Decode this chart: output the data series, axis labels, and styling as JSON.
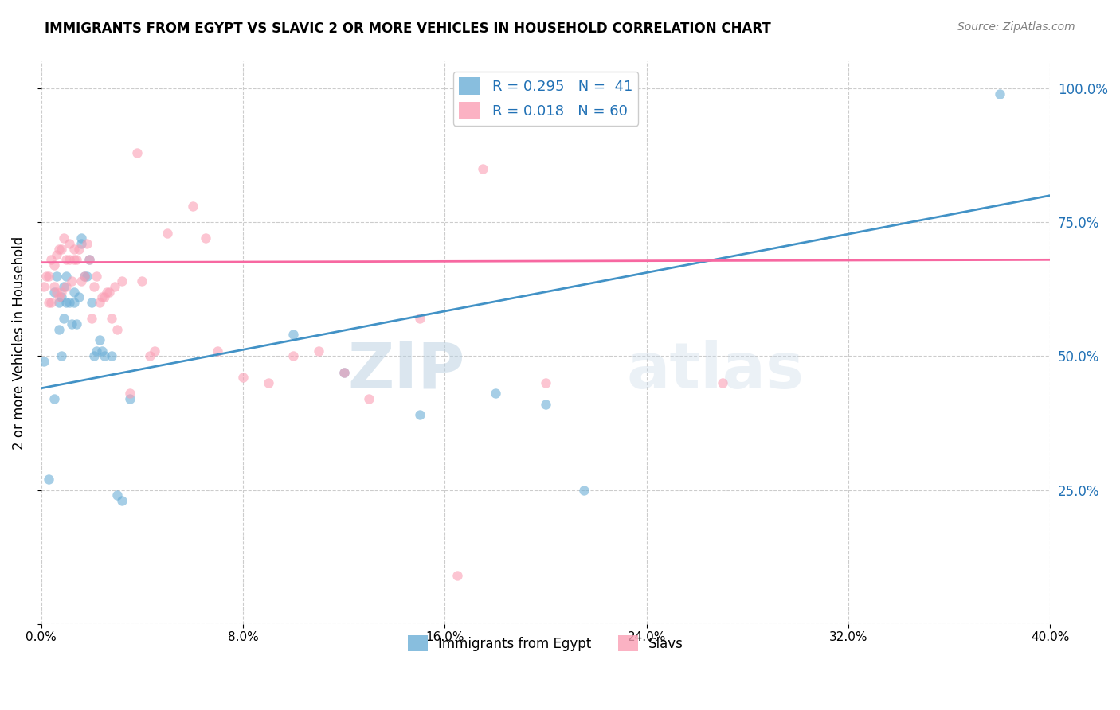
{
  "title": "IMMIGRANTS FROM EGYPT VS SLAVIC 2 OR MORE VEHICLES IN HOUSEHOLD CORRELATION CHART",
  "source": "Source: ZipAtlas.com",
  "ylabel": "2 or more Vehicles in Household",
  "y_tick_labels": [
    "",
    "25.0%",
    "50.0%",
    "75.0%",
    "100.0%"
  ],
  "y_tick_positions": [
    0.0,
    0.25,
    0.5,
    0.75,
    1.0
  ],
  "x_range": [
    0.0,
    0.4
  ],
  "y_range": [
    0.0,
    1.05
  ],
  "legend_r1": "R = 0.295",
  "legend_n1": "N =  41",
  "legend_r2": "R = 0.018",
  "legend_n2": "N = 60",
  "legend_label1": "Immigrants from Egypt",
  "legend_label2": "Slavs",
  "blue_color": "#6baed6",
  "pink_color": "#fa9fb5",
  "line_blue": "#4292c6",
  "line_pink": "#f768a1",
  "text_blue": "#2171b5",
  "watermark_zip": "ZIP",
  "watermark_atlas": "atlas",
  "blue_scatter_x": [
    0.001,
    0.003,
    0.005,
    0.005,
    0.006,
    0.007,
    0.007,
    0.008,
    0.008,
    0.009,
    0.009,
    0.01,
    0.01,
    0.011,
    0.012,
    0.013,
    0.013,
    0.014,
    0.015,
    0.016,
    0.016,
    0.017,
    0.018,
    0.019,
    0.02,
    0.021,
    0.022,
    0.023,
    0.024,
    0.025,
    0.028,
    0.03,
    0.032,
    0.035,
    0.1,
    0.12,
    0.15,
    0.18,
    0.2,
    0.215,
    0.38
  ],
  "blue_scatter_y": [
    0.49,
    0.27,
    0.42,
    0.62,
    0.65,
    0.55,
    0.6,
    0.5,
    0.61,
    0.57,
    0.63,
    0.6,
    0.65,
    0.6,
    0.56,
    0.6,
    0.62,
    0.56,
    0.61,
    0.71,
    0.72,
    0.65,
    0.65,
    0.68,
    0.6,
    0.5,
    0.51,
    0.53,
    0.51,
    0.5,
    0.5,
    0.24,
    0.23,
    0.42,
    0.54,
    0.47,
    0.39,
    0.43,
    0.41,
    0.25,
    0.99
  ],
  "pink_scatter_x": [
    0.001,
    0.002,
    0.003,
    0.003,
    0.004,
    0.004,
    0.005,
    0.005,
    0.006,
    0.006,
    0.007,
    0.007,
    0.008,
    0.008,
    0.009,
    0.01,
    0.01,
    0.011,
    0.011,
    0.012,
    0.013,
    0.013,
    0.014,
    0.015,
    0.016,
    0.017,
    0.018,
    0.019,
    0.02,
    0.021,
    0.022,
    0.023,
    0.024,
    0.025,
    0.026,
    0.027,
    0.028,
    0.029,
    0.03,
    0.032,
    0.035,
    0.038,
    0.04,
    0.043,
    0.045,
    0.05,
    0.06,
    0.065,
    0.07,
    0.08,
    0.09,
    0.1,
    0.11,
    0.12,
    0.13,
    0.15,
    0.165,
    0.175,
    0.2,
    0.27
  ],
  "pink_scatter_y": [
    0.63,
    0.65,
    0.6,
    0.65,
    0.6,
    0.68,
    0.63,
    0.67,
    0.62,
    0.69,
    0.61,
    0.7,
    0.62,
    0.7,
    0.72,
    0.63,
    0.68,
    0.68,
    0.71,
    0.64,
    0.68,
    0.7,
    0.68,
    0.7,
    0.64,
    0.65,
    0.71,
    0.68,
    0.57,
    0.63,
    0.65,
    0.6,
    0.61,
    0.61,
    0.62,
    0.62,
    0.57,
    0.63,
    0.55,
    0.64,
    0.43,
    0.88,
    0.64,
    0.5,
    0.51,
    0.73,
    0.78,
    0.72,
    0.51,
    0.46,
    0.45,
    0.5,
    0.51,
    0.47,
    0.42,
    0.57,
    0.09,
    0.85,
    0.45,
    0.45
  ],
  "blue_line_x": [
    0.0,
    0.4
  ],
  "blue_line_y": [
    0.44,
    0.8
  ],
  "pink_line_x": [
    0.0,
    0.4
  ],
  "pink_line_y": [
    0.675,
    0.68
  ],
  "marker_size": 80,
  "marker_alpha": 0.6,
  "x_ticks": [
    0.0,
    0.08,
    0.16,
    0.24,
    0.32,
    0.4
  ],
  "x_tick_labels": [
    "0.0%",
    "8.0%",
    "16.0%",
    "24.0%",
    "32.0%",
    "40.0%"
  ]
}
